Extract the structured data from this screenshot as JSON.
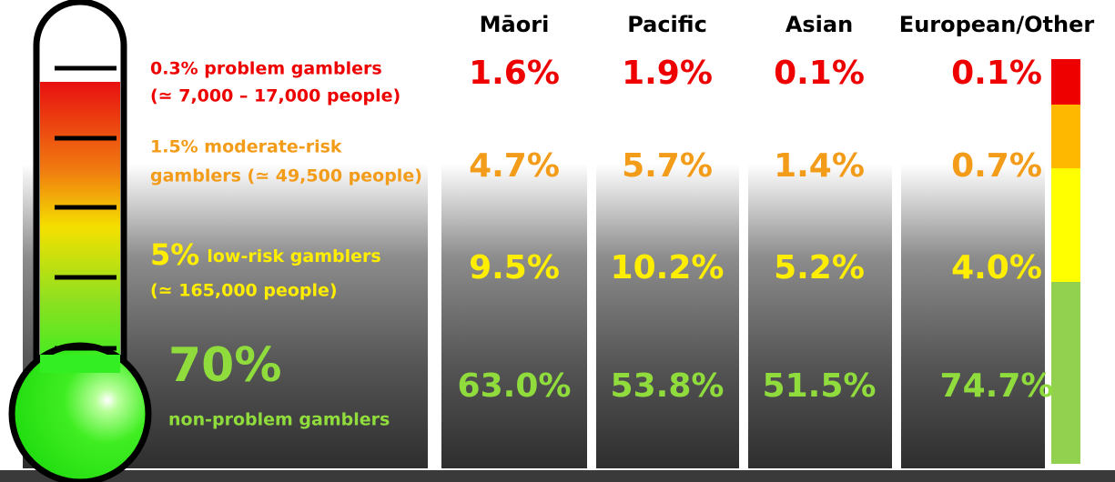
{
  "columns": [
    "Māori",
    "Pacific",
    "Asian",
    "European/Other"
  ],
  "rows": [
    {
      "label": [
        "0.3% problem gamblers",
        "(≃ 7,000 – 17,000 people)"
      ],
      "values": [
        "1.6%",
        "1.9%",
        "0.1%",
        "0.1%"
      ]
    },
    {
      "label": [
        "1.5% moderate-risk",
        "gamblers (≃ 49,500 people)"
      ],
      "values": [
        "4.7%",
        "5.7%",
        "1.4%",
        "0.7%"
      ]
    },
    {
      "label": [
        "5%",
        "low-risk gamblers",
        "(≃ 165,000 people)"
      ],
      "values": [
        "9.5%",
        "10.2%",
        "5.2%",
        "4.0%"
      ]
    },
    {
      "label": [
        "70%",
        "non-problem gamblers"
      ],
      "values": [
        "63.0%",
        "53.8%",
        "51.5%",
        "74.7%"
      ]
    }
  ]
}
